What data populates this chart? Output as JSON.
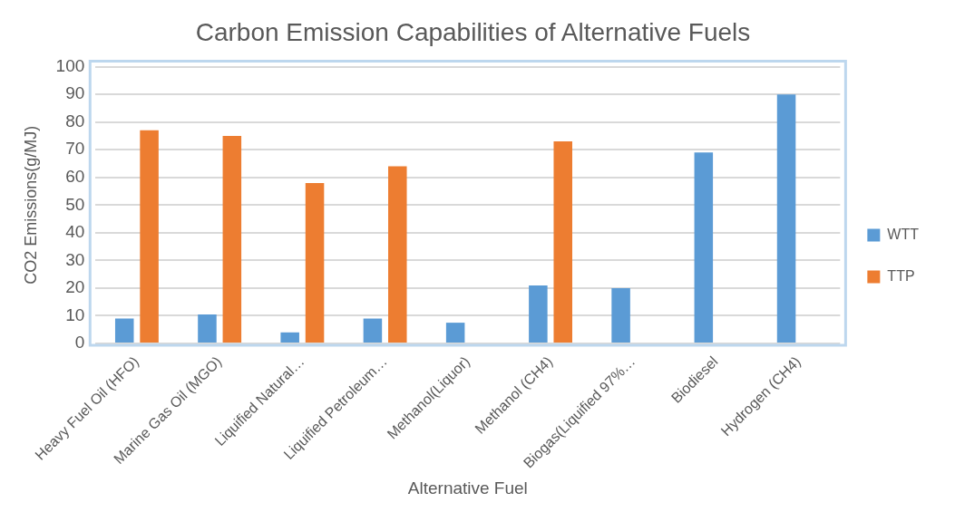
{
  "chart_data": {
    "type": "bar",
    "title": "Carbon Emission Capabilities of Alternative Fuels",
    "xlabel": "Alternative Fuel",
    "ylabel": "CO2 Emissions(g/MJ)",
    "categories": [
      "Heavy Fuel Oil (HFO)",
      "Marine Gas Oil (MGO)",
      "Liquified Natural…",
      "Liquified Petroleum…",
      "Methanol(Liquor)",
      "Methanol (CH4)",
      "Biogas(Liquified 97%…",
      "Biodiesel",
      "Hydrogen (CH4)"
    ],
    "series": [
      {
        "name": "WTT",
        "color": "#5b9bd5",
        "values": [
          9,
          10.5,
          4,
          9,
          7.5,
          21,
          20,
          69,
          90
        ]
      },
      {
        "name": "TTP",
        "color": "#ed7d31",
        "values": [
          77,
          75,
          58,
          64,
          null,
          73,
          null,
          null,
          null
        ]
      }
    ],
    "ylim": [
      0,
      100
    ],
    "yticks": [
      0,
      10,
      20,
      30,
      40,
      50,
      60,
      70,
      80,
      90,
      100
    ],
    "grid": "y",
    "legend": "right"
  }
}
